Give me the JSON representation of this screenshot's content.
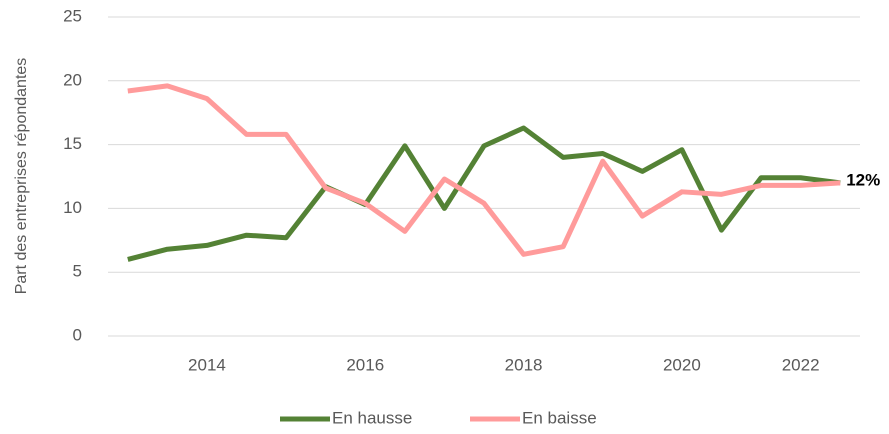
{
  "chart_data": {
    "type": "line",
    "ylabel": "Part des entreprises répondantes",
    "categories": [
      null,
      null,
      "2014",
      null,
      null,
      null,
      "2016",
      null,
      null,
      null,
      "2018",
      null,
      null,
      null,
      "2020",
      null,
      null,
      "2022",
      null
    ],
    "series": [
      {
        "name": "En hausse",
        "color": "#548235",
        "values": [
          6.0,
          6.8,
          7.1,
          7.9,
          7.7,
          11.7,
          10.3,
          14.9,
          10.0,
          14.9,
          16.3,
          14.0,
          14.3,
          12.9,
          14.6,
          8.3,
          12.4,
          12.4,
          12.0
        ],
        "value_labels": [
          null,
          null,
          null,
          null,
          null,
          null,
          null,
          null,
          null,
          null,
          null,
          null,
          null,
          null,
          null,
          null,
          null,
          null,
          "12%"
        ]
      },
      {
        "name": "En baisse",
        "color": "#ff9b9b",
        "values": [
          19.2,
          19.6,
          18.6,
          15.8,
          15.8,
          11.6,
          10.4,
          8.2,
          12.3,
          10.4,
          6.4,
          7.0,
          13.7,
          9.4,
          11.3,
          11.1,
          11.8,
          11.8,
          12.0
        ]
      }
    ],
    "ylim": [
      0,
      25
    ],
    "yticks": [
      0,
      5,
      10,
      15,
      20,
      25
    ],
    "grid": true,
    "legend": "bottom"
  }
}
